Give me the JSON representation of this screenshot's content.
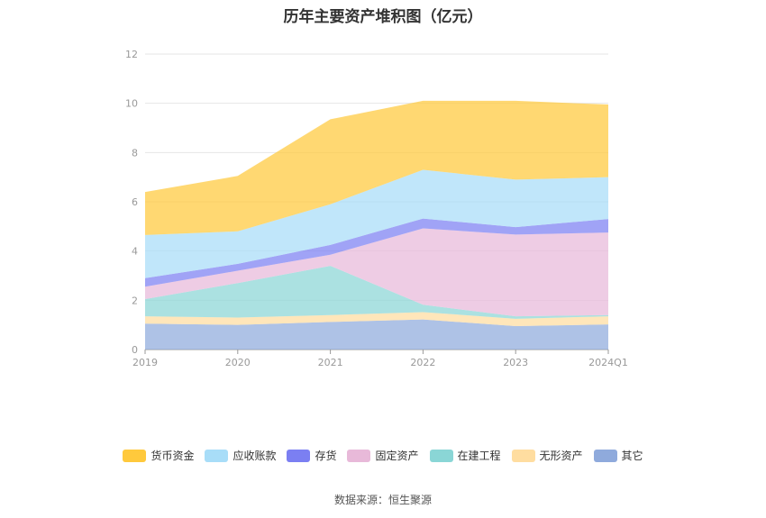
{
  "chart_data": {
    "type": "area",
    "stacked": true,
    "title": "历年主要资产堆积图（亿元）",
    "categories": [
      "2019",
      "2020",
      "2021",
      "2022",
      "2023",
      "2024Q1"
    ],
    "ylim": [
      0,
      12
    ],
    "yticks": [
      0,
      2,
      4,
      6,
      8,
      10,
      12
    ],
    "grid": true,
    "legend_position": "bottom",
    "series": [
      {
        "name": "其它",
        "color": "#8FAADC",
        "values": [
          1.05,
          1.0,
          1.12,
          1.22,
          0.95,
          1.02
        ]
      },
      {
        "name": "无形资产",
        "color": "#FFDDA0",
        "values": [
          0.3,
          0.3,
          0.28,
          0.3,
          0.3,
          0.33
        ]
      },
      {
        "name": "在建工程",
        "color": "#8AD6D6",
        "values": [
          0.7,
          1.4,
          2.0,
          0.3,
          0.1,
          0.05
        ]
      },
      {
        "name": "固定资产",
        "color": "#E8B9D9",
        "values": [
          0.5,
          0.5,
          0.45,
          3.1,
          3.32,
          3.35
        ]
      },
      {
        "name": "存货",
        "color": "#7B7FF2",
        "values": [
          0.35,
          0.28,
          0.4,
          0.4,
          0.3,
          0.55
        ]
      },
      {
        "name": "应收账款",
        "color": "#A8DDF8",
        "values": [
          1.75,
          1.32,
          1.65,
          1.98,
          1.93,
          1.7
        ]
      },
      {
        "name": "货币资金",
        "color": "#FFC93C",
        "values": [
          1.75,
          2.25,
          3.45,
          2.8,
          3.2,
          2.95
        ]
      }
    ]
  },
  "legend_order": [
    "货币资金",
    "应收账款",
    "存货",
    "固定资产",
    "在建工程",
    "无形资产",
    "其它"
  ],
  "source": "数据来源：恒生聚源"
}
